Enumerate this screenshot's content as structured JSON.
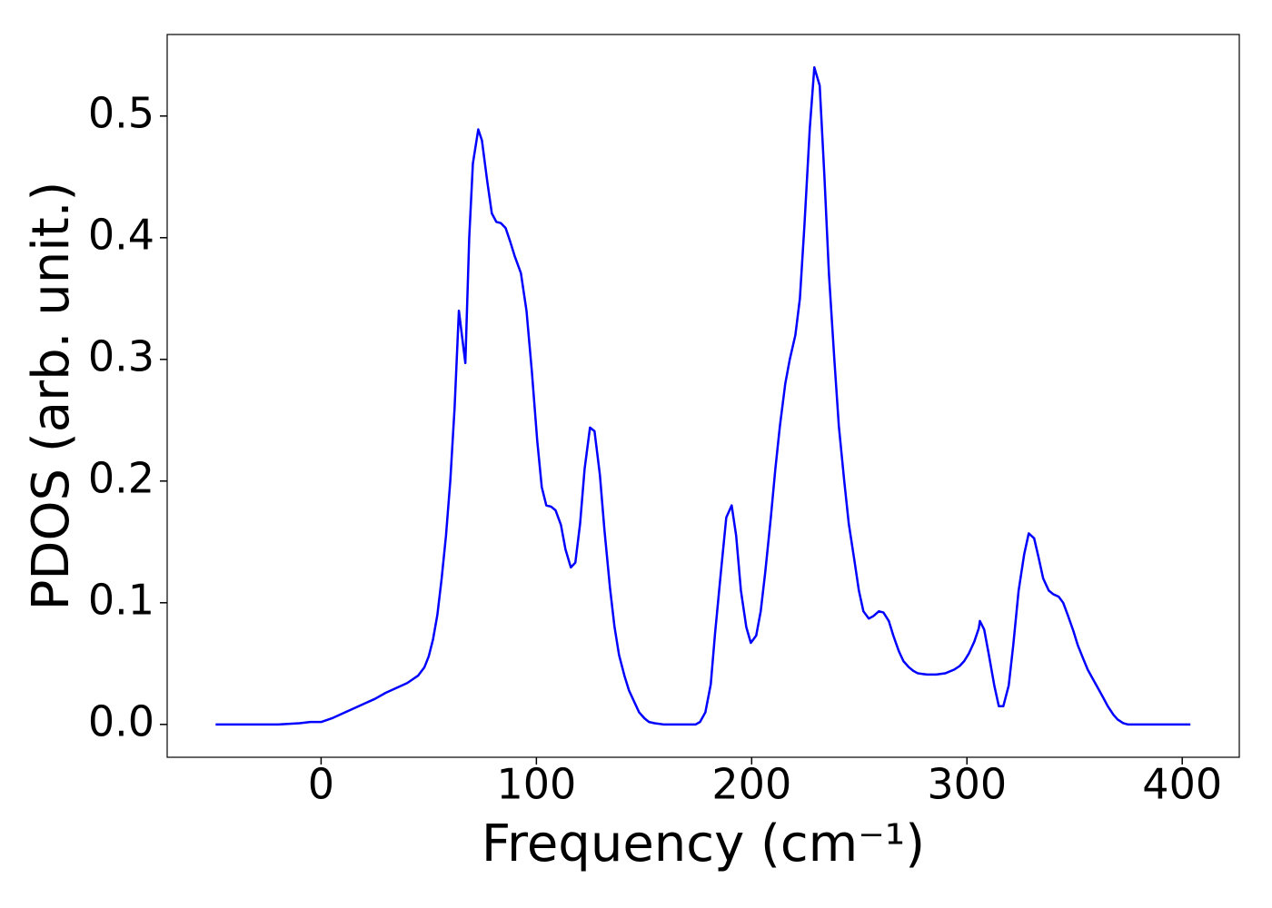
{
  "chart_data": {
    "type": "line",
    "xlabel": "Frequency (cm⁻¹)",
    "ylabel": "PDOS (arb. unit.)",
    "xlim": [
      -71.5,
      426.5
    ],
    "ylim": [
      -0.027,
      0.567
    ],
    "xticks": [
      0,
      100,
      200,
      300,
      400
    ],
    "yticks": [
      {
        "value": 0,
        "label": "0.0"
      },
      0.1,
      0.2,
      0.3,
      0.4,
      0.5
    ],
    "grid": false,
    "x": [
      -49,
      -20,
      -10,
      -5,
      0,
      5,
      10,
      15,
      20,
      25,
      30,
      35,
      40,
      45,
      48,
      50,
      52,
      54,
      56,
      58,
      60,
      62,
      64,
      67,
      68.8,
      70.5,
      73,
      74.7,
      77.2,
      79.3,
      81.4,
      83.5,
      85.7,
      87.8,
      89.9,
      92.8,
      95.4,
      97.9,
      100.4,
      102.5,
      104.6,
      106.8,
      108.9,
      111.4,
      113.5,
      116,
      118.1,
      120.3,
      122.4,
      124.9,
      127,
      129.5,
      131.6,
      134.2,
      136.3,
      138.4,
      140.9,
      143,
      145.6,
      147.7,
      150.2,
      152.3,
      154.9,
      159,
      174,
      176,
      178.5,
      181,
      183,
      185.7,
      188.2,
      190.7,
      192.8,
      195,
      197.5,
      199.6,
      202.1,
      204.2,
      206.3,
      208.9,
      211,
      213.1,
      215.6,
      217.7,
      220.3,
      222.4,
      224.5,
      227,
      229.1,
      231.6,
      233.8,
      235.9,
      238.4,
      240.5,
      243,
      245.1,
      247.7,
      249.8,
      251.9,
      254.4,
      256.5,
      259.1,
      261.2,
      263.7,
      265.8,
      268.4,
      270.5,
      273,
      275.1,
      277.2,
      281.4,
      285.7,
      289.9,
      294,
      296.6,
      298.7,
      300.8,
      303.4,
      305.5,
      306,
      308,
      310.1,
      312.7,
      314.8,
      316.9,
      319.4,
      321.5,
      324,
      326.6,
      328.7,
      331.2,
      333.3,
      335.4,
      338,
      340.1,
      342.6,
      344.7,
      346.8,
      349.4,
      351.5,
      354,
      356.1,
      358.6,
      360.8,
      363.3,
      365.4,
      368,
      370,
      372.6,
      374.7,
      403.8
    ],
    "series": [
      {
        "color": "#0000ff",
        "values": [
          0,
          0,
          0.001,
          0.002,
          0.002,
          0.005,
          0.009,
          0.013,
          0.017,
          0.021,
          0.026,
          0.03,
          0.034,
          0.04,
          0.047,
          0.056,
          0.07,
          0.09,
          0.12,
          0.155,
          0.2,
          0.26,
          0.34,
          0.297,
          0.4,
          0.461,
          0.489,
          0.48,
          0.446,
          0.42,
          0.413,
          0.412,
          0.408,
          0.397,
          0.385,
          0.371,
          0.34,
          0.29,
          0.233,
          0.195,
          0.18,
          0.179,
          0.176,
          0.164,
          0.144,
          0.129,
          0.133,
          0.165,
          0.21,
          0.244,
          0.241,
          0.205,
          0.16,
          0.112,
          0.08,
          0.057,
          0.04,
          0.028,
          0.018,
          0.01,
          0.005,
          0.002,
          0.001,
          0,
          0,
          0.002,
          0.01,
          0.033,
          0.075,
          0.125,
          0.17,
          0.18,
          0.155,
          0.11,
          0.08,
          0.067,
          0.073,
          0.093,
          0.125,
          0.17,
          0.21,
          0.245,
          0.28,
          0.3,
          0.32,
          0.35,
          0.41,
          0.49,
          0.54,
          0.525,
          0.45,
          0.37,
          0.3,
          0.245,
          0.2,
          0.165,
          0.135,
          0.11,
          0.093,
          0.087,
          0.089,
          0.093,
          0.092,
          0.085,
          0.073,
          0.06,
          0.052,
          0.047,
          0.044,
          0.042,
          0.041,
          0.041,
          0.042,
          0.045,
          0.048,
          0.052,
          0.058,
          0.068,
          0.079,
          0.085,
          0.078,
          0.058,
          0.032,
          0.015,
          0.015,
          0.032,
          0.065,
          0.11,
          0.14,
          0.157,
          0.153,
          0.137,
          0.12,
          0.11,
          0.107,
          0.105,
          0.1,
          0.09,
          0.077,
          0.065,
          0.054,
          0.045,
          0.037,
          0.03,
          0.022,
          0.015,
          0.008,
          0.004,
          0.001,
          0,
          0
        ]
      }
    ]
  }
}
